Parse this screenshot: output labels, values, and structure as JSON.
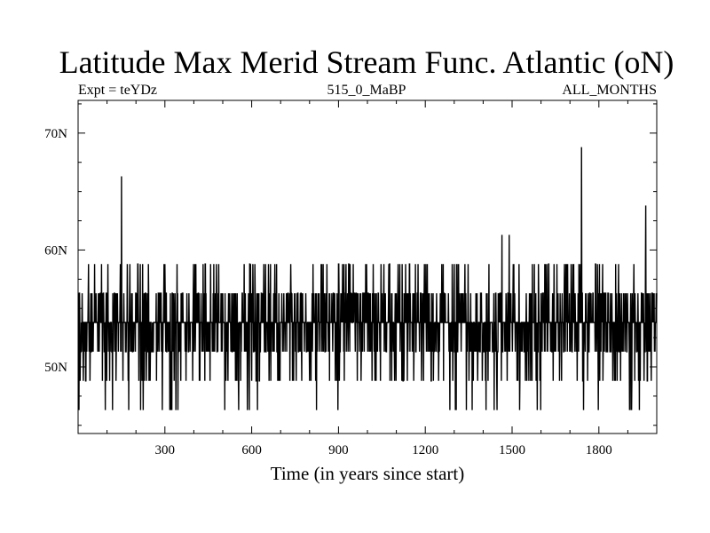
{
  "chart_data": {
    "type": "line",
    "title": "Latitude Max Merid Stream Func. Atlantic (oN)",
    "subtitle_left": "Expt = teYDz",
    "subtitle_center": "515_0_MaBP",
    "subtitle_right": "ALL_MONTHS",
    "xlabel": "Time (in years since start)",
    "ylabel": "",
    "xlim": [
      0,
      2000
    ],
    "ylim": [
      44.3,
      72.8
    ],
    "x_ticks": [
      300,
      600,
      900,
      1200,
      1500,
      1800
    ],
    "x_tick_labels": [
      "300",
      "600",
      "900",
      "1200",
      "1500",
      "1800"
    ],
    "y_ticks": [
      50,
      60,
      70
    ],
    "y_tick_labels": [
      "50N",
      "60N",
      "70N"
    ],
    "grid": false,
    "legend": "none",
    "series_color": "#000000",
    "baseline": 53.8,
    "levels": [
      46.3,
      48.8,
      51.3,
      53.8,
      56.3,
      58.8,
      61.3
    ],
    "spikes": [
      {
        "x": 150,
        "y": 66.3
      },
      {
        "x": 1465,
        "y": 61.3
      },
      {
        "x": 1490,
        "y": 61.3
      },
      {
        "x": 1740,
        "y": 68.8
      },
      {
        "x": 1962,
        "y": 63.8
      }
    ]
  }
}
